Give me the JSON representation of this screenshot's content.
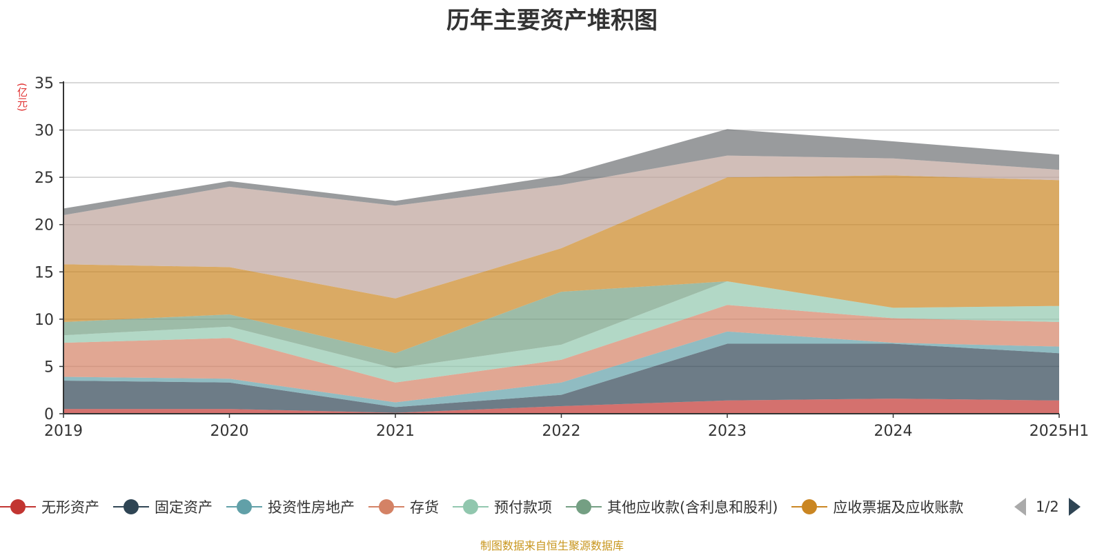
{
  "title": "历年主要资产堆积图",
  "source": "制图数据来自恒生聚源数据库",
  "pager": {
    "text": "1/2"
  },
  "chart_data": {
    "type": "area",
    "stacked": true,
    "title": "历年主要资产堆积图",
    "ylabel": "(亿元)",
    "ylim": [
      0,
      35
    ],
    "yticks": [
      "0",
      "5",
      "10",
      "15",
      "20",
      "25",
      "30",
      "35"
    ],
    "categories": [
      "2019",
      "2020",
      "2021",
      "2022",
      "2023",
      "2024",
      "2025H1"
    ],
    "grid": true,
    "legend_position": "bottom",
    "series": [
      {
        "name": "无形资产",
        "color": "#c23531",
        "values": [
          0.5,
          0.5,
          0.1,
          0.8,
          1.4,
          1.6,
          1.4
        ]
      },
      {
        "name": "固定资产",
        "color": "#2f4554",
        "values": [
          3.0,
          2.8,
          0.6,
          1.2,
          6.0,
          5.8,
          5.0
        ]
      },
      {
        "name": "投资性房地产",
        "color": "#61a0a8",
        "values": [
          0.4,
          0.4,
          0.5,
          1.3,
          1.3,
          0.1,
          0.7
        ]
      },
      {
        "name": "存货",
        "color": "#d48265",
        "values": [
          3.6,
          4.3,
          2.1,
          2.4,
          2.8,
          2.6,
          2.6
        ]
      },
      {
        "name": "预付款项",
        "color": "#91c7ae",
        "values": [
          0.8,
          1.2,
          1.5,
          1.6,
          2.5,
          1.1,
          1.7
        ]
      },
      {
        "name": "其他应收款(含利息和股利)",
        "color": "#749f83",
        "values": [
          1.4,
          1.3,
          1.6,
          5.6,
          0.0,
          0.0,
          0.0
        ]
      },
      {
        "name": "应收票据及应收账款",
        "color": "#ca8622",
        "values": [
          6.1,
          5.0,
          5.8,
          4.6,
          11.0,
          14.0,
          13.3
        ]
      },
      {
        "name": "",
        "color": "#bda29a",
        "values": [
          5.2,
          8.5,
          9.8,
          6.7,
          2.3,
          1.8,
          1.1
        ]
      },
      {
        "name": "",
        "color": "#6e7074",
        "values": [
          0.7,
          0.6,
          0.5,
          1.0,
          2.8,
          1.8,
          1.6
        ]
      }
    ]
  }
}
